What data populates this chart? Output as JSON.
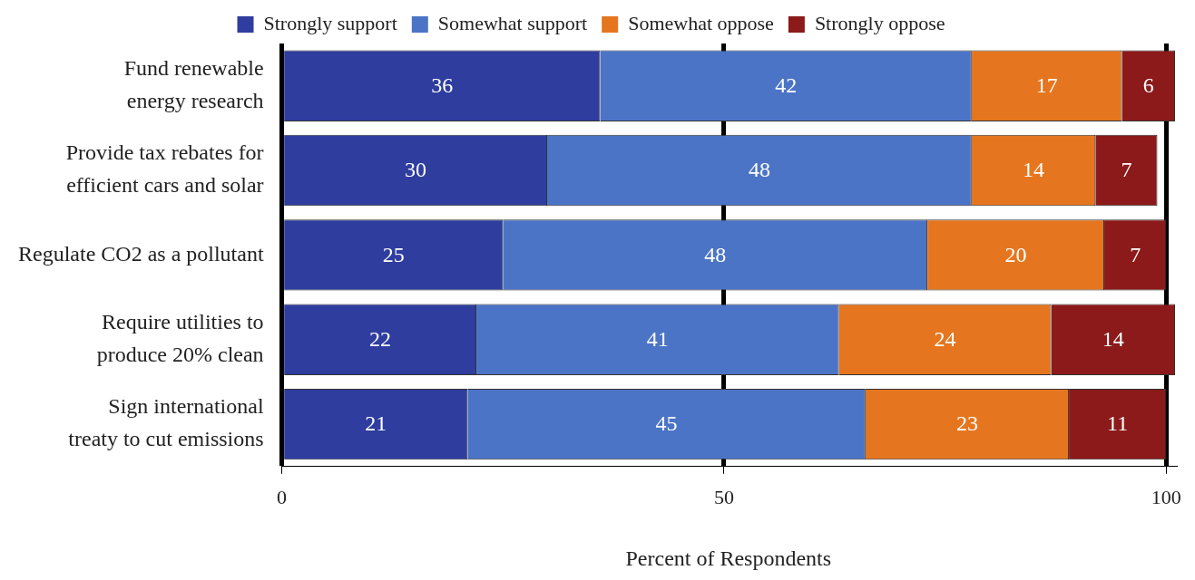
{
  "chart_data": {
    "type": "bar",
    "orientation": "horizontal",
    "stacked": true,
    "data_labels": true,
    "grid": "x",
    "legend": "top",
    "xlabel": "Percent of Respondents",
    "categories": [
      "Fund renewable energy research",
      "Provide tax rebates for efficient cars and solar",
      "Regulate CO2 as a pollutant",
      "Require utilities to produce 20% clean",
      "Sign international treaty to cut emissions"
    ],
    "series": [
      {
        "name": "Strongly support",
        "color": "#2e3d9e",
        "values": [
          36,
          30,
          25,
          22,
          21
        ]
      },
      {
        "name": "Somewhat support",
        "color": "#4b74c6",
        "values": [
          42,
          48,
          48,
          41,
          45
        ]
      },
      {
        "name": "Somewhat oppose",
        "color": "#e5761f",
        "values": [
          17,
          14,
          20,
          24,
          23
        ]
      },
      {
        "name": "Strongly oppose",
        "color": "#8c1a1a",
        "values": [
          6,
          7,
          7,
          14,
          11
        ]
      }
    ],
    "xlim": [
      0,
      101
    ],
    "xticks": [
      0,
      50,
      100
    ]
  }
}
